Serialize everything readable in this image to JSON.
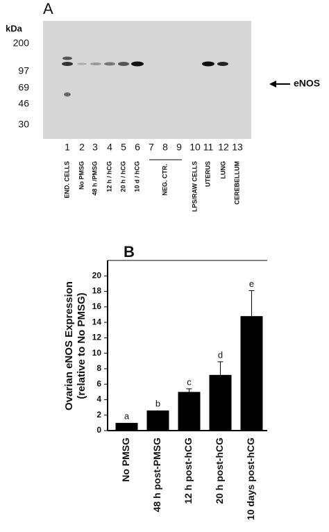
{
  "panel_a": {
    "label": "A",
    "unit": "kDa",
    "markers": [
      200,
      97,
      69,
      46,
      30
    ],
    "band_label": "eNOS",
    "lanes": [
      1,
      2,
      3,
      4,
      5,
      6,
      7,
      8,
      9,
      10,
      11,
      12,
      13
    ],
    "lane_labels": [
      "END. CELLS",
      "No PMSG",
      "48 h /PMSG",
      "12 h / hCG",
      "20 h / hCG",
      "10 d / hCG",
      "NEG. CTR.",
      "LPS/RAW CELLS",
      "UTERUS",
      "LUNG",
      "CEREBELLUM"
    ]
  },
  "chart_data": {
    "type": "bar",
    "label": "B",
    "ylabel": [
      "Ovarian eNOS Expression",
      "(relative to No PMSG)"
    ],
    "categories": [
      "No PMSG",
      "48 h post-PMSG",
      "12 h post-hCG",
      "20 h post-hCG",
      "10 days post-hCG"
    ],
    "values": [
      1,
      2.6,
      5.0,
      7.2,
      14.8
    ],
    "errors": [
      null,
      null,
      0.4,
      1.7,
      3.3
    ],
    "annotations": [
      "a",
      "b",
      "c",
      "d",
      "e"
    ],
    "color": "#000000",
    "ylim": [
      0,
      22
    ],
    "yticks": [
      0,
      2,
      4,
      6,
      8,
      10,
      12,
      14,
      16,
      18,
      20
    ]
  }
}
